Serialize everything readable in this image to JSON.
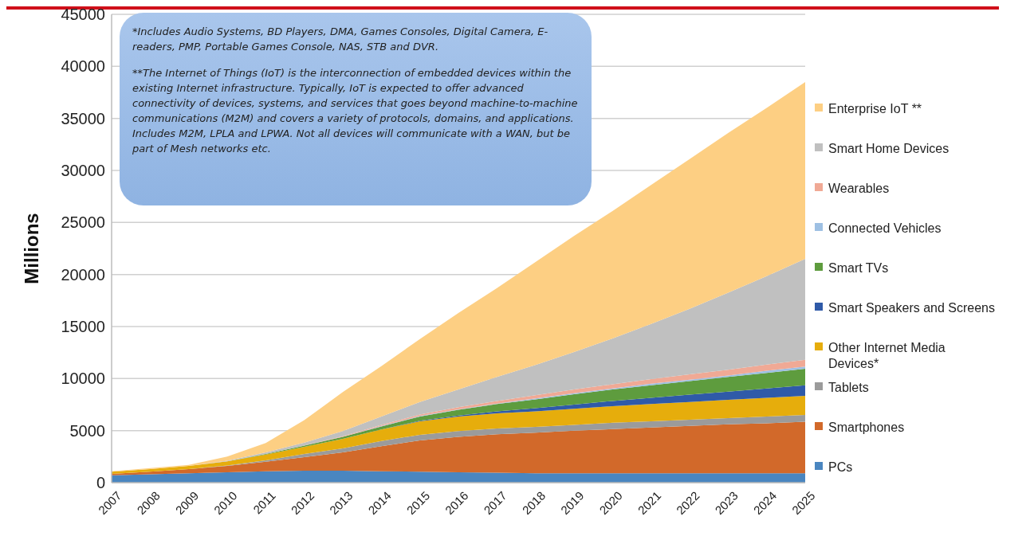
{
  "chart_data": {
    "type": "area",
    "stacked": true,
    "ylabel": "Millions",
    "categories": [
      "2007",
      "2008",
      "2009",
      "2010",
      "2011",
      "2012",
      "2013",
      "2014",
      "2015",
      "2016",
      "2017",
      "2018",
      "2019",
      "2020",
      "2021",
      "2022",
      "2023",
      "2024",
      "2025"
    ],
    "ylim": [
      0,
      45000
    ],
    "yticks": [
      0,
      5000,
      10000,
      15000,
      20000,
      25000,
      30000,
      35000,
      40000,
      45000
    ],
    "grid": "y",
    "legend": "right",
    "annotations": [
      "*Includes Audio Systems, BD Players, DMA, Games Consoles, Digital Camera, E-readers, PMP, Portable Games Console, NAS, STB and DVR.",
      "**The Internet of Things (IoT) is the interconnection of embedded devices within the existing Internet infrastructure. Typically, IoT is expected to offer advanced connectivity of devices, systems, and services that goes beyond machine-to-machine communications (M2M) and covers a variety of protocols, domains, and applications. Includes M2M, LPLA and LPWA. Not all devices will communicate with a WAN, but be part of Mesh networks etc."
    ],
    "series": [
      {
        "name": "PCs",
        "color": "#4a86c0",
        "values": [
          700,
          800,
          900,
          1000,
          1100,
          1150,
          1150,
          1100,
          1050,
          1000,
          950,
          900,
          900,
          900,
          900,
          900,
          900,
          900,
          900
        ]
      },
      {
        "name": "Smartphones",
        "color": "#d2692a",
        "values": [
          150,
          250,
          400,
          600,
          900,
          1300,
          1750,
          2400,
          3000,
          3400,
          3700,
          3900,
          4100,
          4250,
          4400,
          4550,
          4700,
          4800,
          4950
        ]
      },
      {
        "name": "Tablets",
        "color": "#9b9b9b",
        "values": [
          0,
          0,
          0,
          50,
          150,
          300,
          400,
          500,
          550,
          550,
          550,
          550,
          550,
          600,
          600,
          600,
          600,
          650,
          650
        ]
      },
      {
        "name": "Other Internet Media Devices*",
        "color": "#e6ad0c",
        "values": [
          200,
          250,
          300,
          400,
          550,
          700,
          900,
          1100,
          1300,
          1400,
          1450,
          1500,
          1550,
          1600,
          1650,
          1700,
          1750,
          1800,
          1850
        ]
      },
      {
        "name": "Smart Speakers and Screens",
        "color": "#2f5aa8",
        "values": [
          0,
          0,
          0,
          0,
          0,
          0,
          0,
          0,
          50,
          100,
          200,
          300,
          400,
          500,
          600,
          700,
          800,
          900,
          1000
        ]
      },
      {
        "name": "Smart TVs",
        "color": "#5e9c3e",
        "values": [
          0,
          0,
          0,
          0,
          50,
          100,
          200,
          300,
          400,
          550,
          700,
          850,
          1000,
          1100,
          1200,
          1300,
          1400,
          1500,
          1600
        ]
      },
      {
        "name": "Connected Vehicles",
        "color": "#9ec0e3",
        "values": [
          0,
          0,
          0,
          0,
          0,
          0,
          0,
          50,
          50,
          50,
          50,
          100,
          100,
          100,
          150,
          150,
          150,
          200,
          200
        ]
      },
      {
        "name": "Wearables",
        "color": "#f0a995",
        "values": [
          0,
          0,
          0,
          0,
          0,
          0,
          50,
          100,
          150,
          200,
          250,
          300,
          350,
          400,
          450,
          500,
          550,
          600,
          650
        ]
      },
      {
        "name": "Smart Home Devices",
        "color": "#c0c0c0",
        "values": [
          0,
          0,
          0,
          50,
          150,
          300,
          500,
          800,
          1200,
          1700,
          2300,
          2900,
          3600,
          4400,
          5300,
          6300,
          7400,
          8500,
          9700
        ]
      },
      {
        "name": "Enterprise IoT **",
        "color": "#fdcf83",
        "values": [
          50,
          100,
          100,
          400,
          900,
          2150,
          3750,
          4850,
          6050,
          7350,
          8550,
          9900,
          11150,
          12250,
          13350,
          14400,
          15350,
          16150,
          17000
        ]
      }
    ]
  }
}
